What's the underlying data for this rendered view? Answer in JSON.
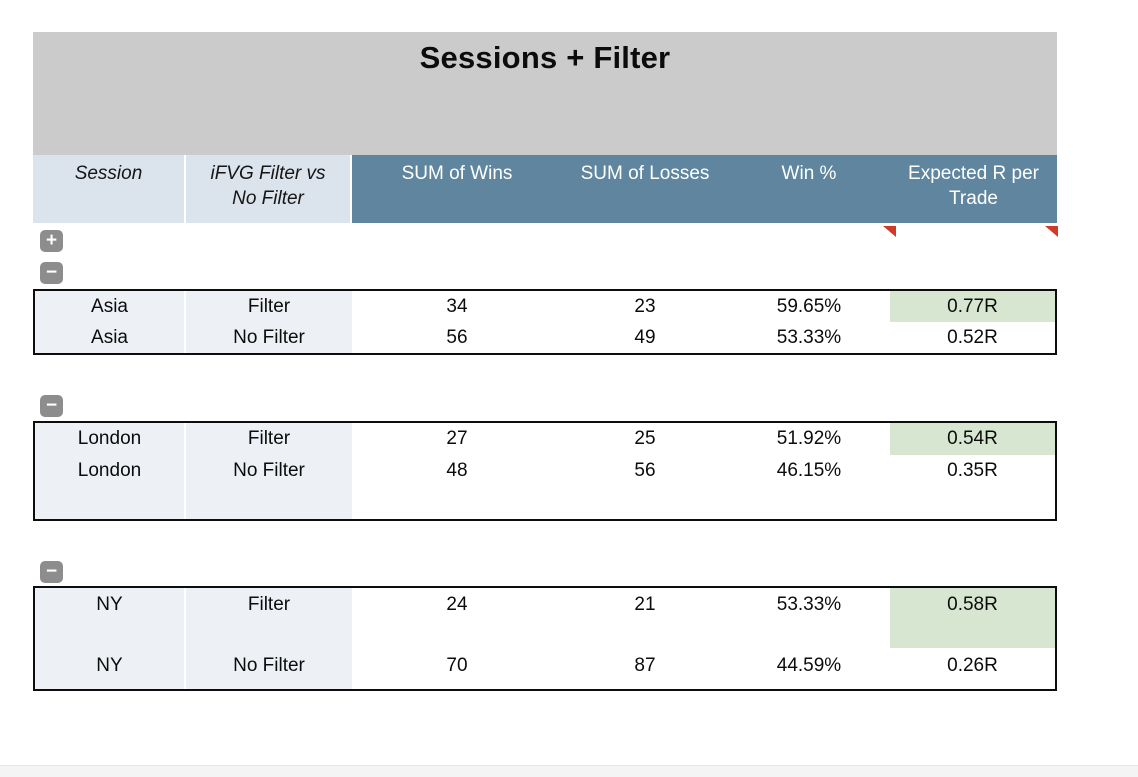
{
  "title": "Sessions + Filter",
  "columns": [
    {
      "label": "Session"
    },
    {
      "label": "iFVG Filter vs No Filter"
    },
    {
      "label": "SUM of Wins"
    },
    {
      "label": "SUM of Losses"
    },
    {
      "label": "Win %"
    },
    {
      "label": "Expected R per Trade"
    }
  ],
  "outline": {
    "expand_glyph": "+",
    "collapse_glyph": "−"
  },
  "groups": [
    {
      "name": "Asia",
      "rows": [
        {
          "session": "Asia",
          "filter": "Filter",
          "wins": "34",
          "losses": "23",
          "win_pct": "59.65%",
          "expected_r": "0.77R",
          "highlighted": true
        },
        {
          "session": "Asia",
          "filter": "No Filter",
          "wins": "56",
          "losses": "49",
          "win_pct": "53.33%",
          "expected_r": "0.52R",
          "highlighted": false
        }
      ]
    },
    {
      "name": "London",
      "rows": [
        {
          "session": "London",
          "filter": "Filter",
          "wins": "27",
          "losses": "25",
          "win_pct": "51.92%",
          "expected_r": "0.54R",
          "highlighted": true
        },
        {
          "session": "London",
          "filter": "No Filter",
          "wins": "48",
          "losses": "56",
          "win_pct": "46.15%",
          "expected_r": "0.35R",
          "highlighted": false
        }
      ]
    },
    {
      "name": "NY",
      "rows": [
        {
          "session": "NY",
          "filter": "Filter",
          "wins": "24",
          "losses": "21",
          "win_pct": "53.33%",
          "expected_r": "0.58R",
          "highlighted": true
        },
        {
          "session": "NY",
          "filter": "No Filter",
          "wins": "70",
          "losses": "87",
          "win_pct": "44.59%",
          "expected_r": "0.26R",
          "highlighted": false
        }
      ]
    }
  ],
  "colors": {
    "title_block_bg": "#cbcbcb",
    "header_light_bg": "#dbe3ec",
    "header_blue_bg": "#5f869e",
    "body_light_col_bg": "#edf1f5",
    "highlight_green": "#d7e6d1",
    "comment_marker_red": "#cf3a2b",
    "outline_button_gray": "#8d8d8d"
  }
}
